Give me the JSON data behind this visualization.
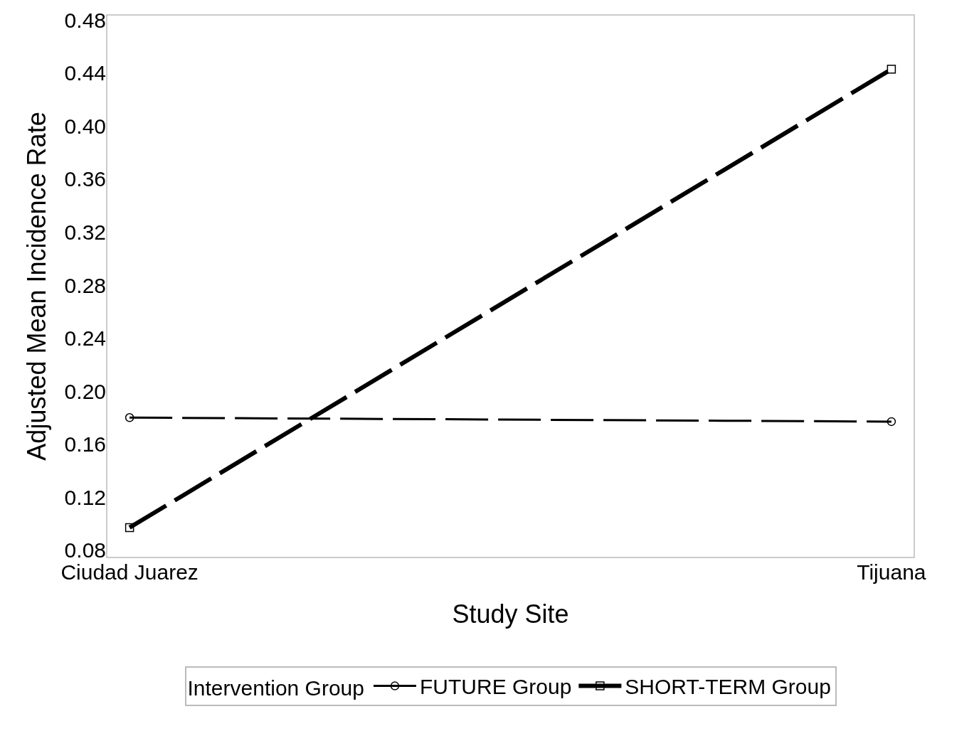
{
  "chart_data": {
    "type": "line",
    "xlabel": "Study Site",
    "ylabel": "Adjusted Mean Incidence Rate",
    "legend_title": "Intervention Group",
    "categories": [
      "Ciudad Juarez",
      "Tijuana"
    ],
    "series": [
      {
        "name": "FUTURE Group",
        "color": "#000000",
        "values": [
          0.18,
          0.177
        ],
        "marker": "circle",
        "line_style": "dashed"
      },
      {
        "name": "SHORT-TERM Group",
        "color": "#000000",
        "values": [
          0.097,
          0.443
        ],
        "marker": "square",
        "line_style": "dashed"
      }
    ],
    "ylim": [
      0.0744,
      0.484
    ],
    "yticks": [
      {
        "value": 0.08,
        "label": "0.08"
      },
      {
        "value": 0.12,
        "label": "0.12"
      },
      {
        "value": 0.16,
        "label": "0.16"
      },
      {
        "value": 0.2,
        "label": "0.20"
      },
      {
        "value": 0.24,
        "label": "0.24"
      },
      {
        "value": 0.28,
        "label": "0.28"
      },
      {
        "value": 0.32,
        "label": "0.32"
      },
      {
        "value": 0.36,
        "label": "0.36"
      },
      {
        "value": 0.4,
        "label": "0.40"
      },
      {
        "value": 0.44,
        "label": "0.44"
      },
      {
        "value": 0.48,
        "label": "0.48"
      }
    ],
    "legend": "bottom"
  }
}
